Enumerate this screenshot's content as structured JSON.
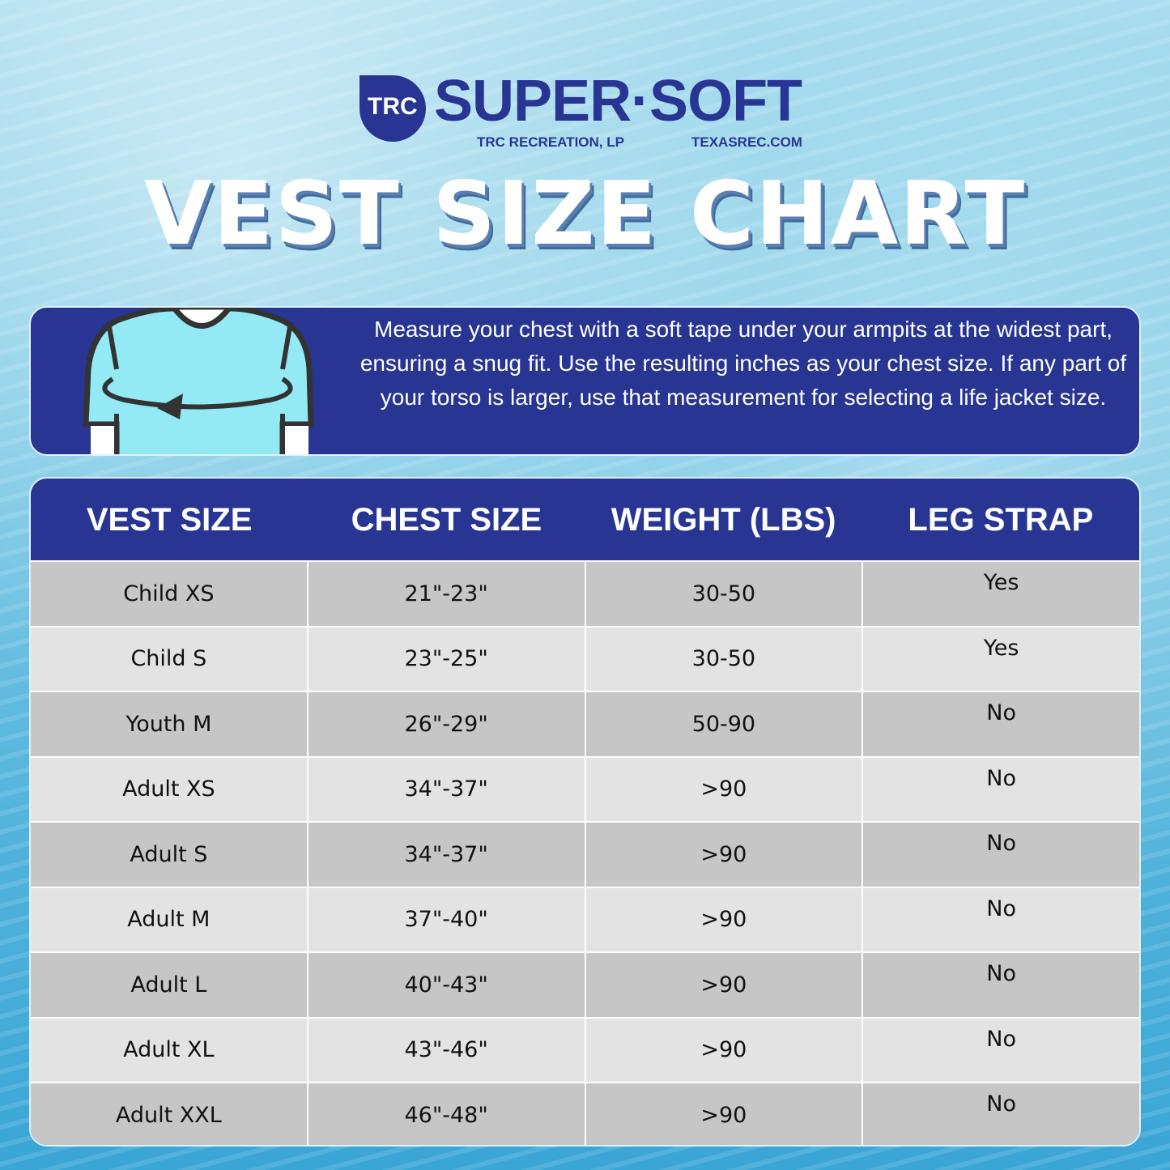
{
  "logo": {
    "badge": "TRC",
    "brand": "SUPER·SOFT",
    "company": "TRC RECREATION, LP",
    "website": "TEXASREC.COM"
  },
  "title": "VEST SIZE CHART",
  "instructions": "Measure your chest with a soft tape under your armpits at the widest part, ensuring a snug fit. Use the resulting inches as your chest size. If any part of your torso is larger, use that measurement for selecting a life jacket size.",
  "table": {
    "headers": [
      "VEST SIZE",
      "CHEST SIZE",
      "WEIGHT (LBS)",
      "LEG STRAP"
    ],
    "rows": [
      [
        "Child XS",
        "21\"-23\"",
        "30-50",
        "Yes"
      ],
      [
        "Child S",
        "23\"-25\"",
        "30-50",
        "Yes"
      ],
      [
        "Youth M",
        "26\"-29\"",
        "50-90",
        "No"
      ],
      [
        "Adult XS",
        "34\"-37\"",
        ">90",
        "No"
      ],
      [
        "Adult S",
        "34\"-37\"",
        ">90",
        "No"
      ],
      [
        "Adult M",
        "37\"-40\"",
        ">90",
        "No"
      ],
      [
        "Adult L",
        "40\"-43\"",
        ">90",
        "No"
      ],
      [
        "Adult XL",
        "43\"-46\"",
        ">90",
        "No"
      ],
      [
        "Adult XXL",
        "46\"-48\"",
        ">90",
        "No"
      ]
    ]
  },
  "colors": {
    "navy": "#283593",
    "row_dark": "#c6c6c6",
    "row_light": "#e3e3e3",
    "shirt": "#93eaf5"
  }
}
